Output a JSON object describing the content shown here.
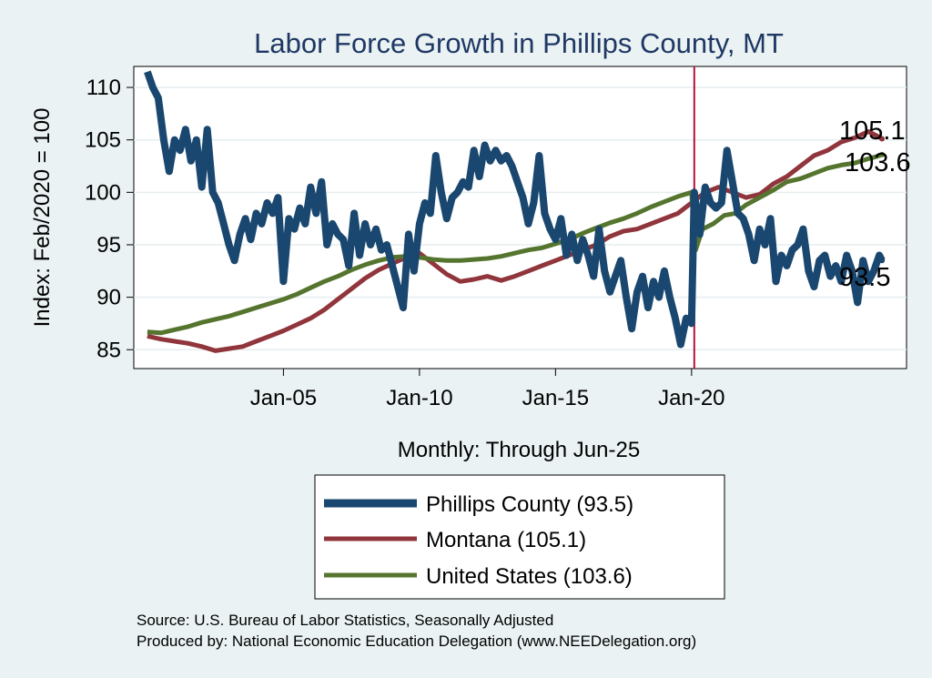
{
  "chart_data": {
    "type": "line",
    "title": "Labor Force Growth in Phillips  County, MT",
    "xlabel": "Monthly: Through Jun-25",
    "ylabel": "Index: Feb/2020 = 100",
    "ylim": [
      83.2,
      112
    ],
    "yticks": [
      85,
      90,
      95,
      100,
      105,
      110
    ],
    "xticks": [
      {
        "label": "Jan-05",
        "value": 2005.0
      },
      {
        "label": "Jan-10",
        "value": 2010.0
      },
      {
        "label": "Jan-15",
        "value": 2015.0
      },
      {
        "label": "Jan-20",
        "value": 2020.0
      }
    ],
    "xlim": [
      1999.5,
      2027.9
    ],
    "reference_line": {
      "x": 2020.1,
      "color": "#b5123c"
    },
    "grid": true,
    "series": [
      {
        "name": "Phillips  County",
        "legend": "Phillips  County (93.5)",
        "color": "#1a476f",
        "end_label": "93.5",
        "points": [
          [
            2000.0,
            111.5
          ],
          [
            2000.2,
            110.0
          ],
          [
            2000.4,
            109.0
          ],
          [
            2000.6,
            105.0
          ],
          [
            2000.8,
            102.0
          ],
          [
            2001.0,
            105.0
          ],
          [
            2001.2,
            104.0
          ],
          [
            2001.4,
            106.0
          ],
          [
            2001.6,
            103.0
          ],
          [
            2001.8,
            105.0
          ],
          [
            2002.0,
            100.5
          ],
          [
            2002.2,
            106.0
          ],
          [
            2002.4,
            100.0
          ],
          [
            2002.6,
            99.0
          ],
          [
            2002.8,
            97.0
          ],
          [
            2003.0,
            95.0
          ],
          [
            2003.2,
            93.5
          ],
          [
            2003.4,
            96.0
          ],
          [
            2003.6,
            97.5
          ],
          [
            2003.8,
            95.5
          ],
          [
            2004.0,
            98.0
          ],
          [
            2004.2,
            97.0
          ],
          [
            2004.4,
            99.0
          ],
          [
            2004.6,
            98.0
          ],
          [
            2004.8,
            99.5
          ],
          [
            2005.0,
            91.5
          ],
          [
            2005.2,
            97.5
          ],
          [
            2005.4,
            96.5
          ],
          [
            2005.6,
            98.5
          ],
          [
            2005.8,
            97.0
          ],
          [
            2006.0,
            100.5
          ],
          [
            2006.2,
            98.0
          ],
          [
            2006.4,
            101.0
          ],
          [
            2006.6,
            95.0
          ],
          [
            2006.8,
            97.0
          ],
          [
            2007.0,
            96.0
          ],
          [
            2007.2,
            95.5
          ],
          [
            2007.4,
            93.0
          ],
          [
            2007.6,
            98.0
          ],
          [
            2007.8,
            94.0
          ],
          [
            2008.0,
            97.0
          ],
          [
            2008.2,
            95.0
          ],
          [
            2008.4,
            96.5
          ],
          [
            2008.6,
            94.5
          ],
          [
            2008.8,
            95.0
          ],
          [
            2009.0,
            93.0
          ],
          [
            2009.2,
            91.0
          ],
          [
            2009.4,
            89.0
          ],
          [
            2009.6,
            96.0
          ],
          [
            2009.8,
            92.5
          ],
          [
            2010.0,
            97.0
          ],
          [
            2010.2,
            99.0
          ],
          [
            2010.4,
            98.0
          ],
          [
            2010.6,
            103.5
          ],
          [
            2010.8,
            100.0
          ],
          [
            2011.0,
            97.5
          ],
          [
            2011.2,
            99.5
          ],
          [
            2011.4,
            100.0
          ],
          [
            2011.6,
            101.0
          ],
          [
            2011.8,
            100.5
          ],
          [
            2012.0,
            104.0
          ],
          [
            2012.2,
            101.5
          ],
          [
            2012.4,
            104.5
          ],
          [
            2012.6,
            103.0
          ],
          [
            2012.8,
            104.0
          ],
          [
            2013.0,
            103.0
          ],
          [
            2013.2,
            103.5
          ],
          [
            2013.4,
            102.5
          ],
          [
            2013.6,
            101.0
          ],
          [
            2013.8,
            99.5
          ],
          [
            2014.0,
            97.0
          ],
          [
            2014.2,
            99.0
          ],
          [
            2014.4,
            103.5
          ],
          [
            2014.6,
            98.0
          ],
          [
            2014.8,
            96.5
          ],
          [
            2015.0,
            95.5
          ],
          [
            2015.2,
            97.5
          ],
          [
            2015.4,
            94.0
          ],
          [
            2015.6,
            96.0
          ],
          [
            2015.8,
            93.5
          ],
          [
            2016.0,
            95.5
          ],
          [
            2016.2,
            94.0
          ],
          [
            2016.4,
            92.0
          ],
          [
            2016.6,
            96.5
          ],
          [
            2016.8,
            92.5
          ],
          [
            2017.0,
            90.5
          ],
          [
            2017.2,
            92.0
          ],
          [
            2017.4,
            93.5
          ],
          [
            2017.6,
            90.0
          ],
          [
            2017.8,
            87.0
          ],
          [
            2018.0,
            90.5
          ],
          [
            2018.2,
            92.0
          ],
          [
            2018.4,
            89.0
          ],
          [
            2018.6,
            91.5
          ],
          [
            2018.8,
            90.0
          ],
          [
            2019.0,
            92.5
          ],
          [
            2019.2,
            90.0
          ],
          [
            2019.4,
            88.0
          ],
          [
            2019.6,
            85.5
          ],
          [
            2019.8,
            88.0
          ],
          [
            2020.0,
            87.5
          ],
          [
            2020.1,
            100.0
          ],
          [
            2020.3,
            96.0
          ],
          [
            2020.5,
            100.5
          ],
          [
            2020.7,
            99.0
          ],
          [
            2020.9,
            98.5
          ],
          [
            2021.1,
            99.0
          ],
          [
            2021.3,
            104.0
          ],
          [
            2021.5,
            101.0
          ],
          [
            2021.7,
            98.0
          ],
          [
            2021.9,
            97.5
          ],
          [
            2022.1,
            96.0
          ],
          [
            2022.3,
            93.5
          ],
          [
            2022.5,
            96.5
          ],
          [
            2022.7,
            95.0
          ],
          [
            2022.9,
            97.5
          ],
          [
            2023.1,
            91.5
          ],
          [
            2023.3,
            94.0
          ],
          [
            2023.5,
            93.0
          ],
          [
            2023.7,
            94.5
          ],
          [
            2023.9,
            95.0
          ],
          [
            2024.1,
            96.5
          ],
          [
            2024.3,
            92.5
          ],
          [
            2024.5,
            91.0
          ],
          [
            2024.7,
            93.5
          ],
          [
            2024.9,
            94.0
          ],
          [
            2025.1,
            92.0
          ],
          [
            2025.3,
            93.0
          ],
          [
            2025.5,
            91.5
          ],
          [
            2025.7,
            94.0
          ],
          [
            2025.9,
            92.5
          ],
          [
            2026.1,
            89.5
          ],
          [
            2026.3,
            93.5
          ],
          [
            2026.5,
            91.5
          ],
          [
            2026.7,
            92.5
          ],
          [
            2026.9,
            94.0
          ],
          [
            2027.0,
            93.5
          ]
        ]
      },
      {
        "name": "Montana",
        "legend": "Montana (105.1)",
        "color": "#90353b",
        "end_label": "105.1",
        "points": [
          [
            2000.0,
            86.3
          ],
          [
            2000.5,
            86.0
          ],
          [
            2001.0,
            85.8
          ],
          [
            2001.5,
            85.6
          ],
          [
            2002.0,
            85.3
          ],
          [
            2002.5,
            84.9
          ],
          [
            2003.0,
            85.1
          ],
          [
            2003.5,
            85.3
          ],
          [
            2004.0,
            85.8
          ],
          [
            2004.5,
            86.3
          ],
          [
            2005.0,
            86.8
          ],
          [
            2005.5,
            87.4
          ],
          [
            2006.0,
            88.0
          ],
          [
            2006.5,
            88.8
          ],
          [
            2007.0,
            89.8
          ],
          [
            2007.5,
            90.8
          ],
          [
            2008.0,
            91.8
          ],
          [
            2008.5,
            92.6
          ],
          [
            2009.0,
            93.2
          ],
          [
            2009.5,
            93.8
          ],
          [
            2010.0,
            94.2
          ],
          [
            2010.5,
            93.2
          ],
          [
            2011.0,
            92.2
          ],
          [
            2011.5,
            91.5
          ],
          [
            2012.0,
            91.7
          ],
          [
            2012.5,
            92.0
          ],
          [
            2013.0,
            91.6
          ],
          [
            2013.5,
            92.0
          ],
          [
            2014.0,
            92.5
          ],
          [
            2014.5,
            93.0
          ],
          [
            2015.0,
            93.5
          ],
          [
            2015.5,
            94.0
          ],
          [
            2016.0,
            94.5
          ],
          [
            2016.5,
            95.0
          ],
          [
            2017.0,
            95.8
          ],
          [
            2017.5,
            96.3
          ],
          [
            2018.0,
            96.5
          ],
          [
            2018.5,
            97.0
          ],
          [
            2019.0,
            97.5
          ],
          [
            2019.5,
            98.0
          ],
          [
            2020.0,
            99.0
          ],
          [
            2020.5,
            100.0
          ],
          [
            2021.0,
            100.5
          ],
          [
            2021.5,
            100.0
          ],
          [
            2022.0,
            99.5
          ],
          [
            2022.5,
            99.8
          ],
          [
            2023.0,
            100.8
          ],
          [
            2023.5,
            101.5
          ],
          [
            2024.0,
            102.5
          ],
          [
            2024.5,
            103.5
          ],
          [
            2025.0,
            104.0
          ],
          [
            2025.5,
            104.8
          ],
          [
            2026.0,
            105.2
          ],
          [
            2026.5,
            105.8
          ],
          [
            2026.8,
            105.4
          ],
          [
            2027.0,
            105.1
          ]
        ]
      },
      {
        "name": "United States",
        "legend": "United States (103.6)",
        "color": "#55752f",
        "end_label": "103.6",
        "points": [
          [
            2000.0,
            86.7
          ],
          [
            2000.5,
            86.6
          ],
          [
            2001.0,
            86.9
          ],
          [
            2001.5,
            87.2
          ],
          [
            2002.0,
            87.6
          ],
          [
            2002.5,
            87.9
          ],
          [
            2003.0,
            88.2
          ],
          [
            2003.5,
            88.6
          ],
          [
            2004.0,
            89.0
          ],
          [
            2004.5,
            89.4
          ],
          [
            2005.0,
            89.8
          ],
          [
            2005.5,
            90.3
          ],
          [
            2006.0,
            90.9
          ],
          [
            2006.5,
            91.5
          ],
          [
            2007.0,
            92.0
          ],
          [
            2007.5,
            92.6
          ],
          [
            2008.0,
            93.1
          ],
          [
            2008.5,
            93.5
          ],
          [
            2009.0,
            93.8
          ],
          [
            2009.5,
            93.9
          ],
          [
            2010.0,
            93.8
          ],
          [
            2010.5,
            93.6
          ],
          [
            2011.0,
            93.5
          ],
          [
            2011.5,
            93.5
          ],
          [
            2012.0,
            93.6
          ],
          [
            2012.5,
            93.7
          ],
          [
            2013.0,
            93.9
          ],
          [
            2013.5,
            94.2
          ],
          [
            2014.0,
            94.5
          ],
          [
            2014.5,
            94.7
          ],
          [
            2015.0,
            95.1
          ],
          [
            2015.5,
            95.5
          ],
          [
            2016.0,
            96.1
          ],
          [
            2016.5,
            96.6
          ],
          [
            2017.0,
            97.1
          ],
          [
            2017.5,
            97.5
          ],
          [
            2018.0,
            98.0
          ],
          [
            2018.5,
            98.6
          ],
          [
            2019.0,
            99.1
          ],
          [
            2019.5,
            99.6
          ],
          [
            2020.0,
            100.0
          ],
          [
            2020.15,
            94.5
          ],
          [
            2020.4,
            96.5
          ],
          [
            2020.8,
            97.0
          ],
          [
            2021.2,
            97.8
          ],
          [
            2021.6,
            98.0
          ],
          [
            2022.0,
            98.8
          ],
          [
            2022.5,
            99.5
          ],
          [
            2023.0,
            100.2
          ],
          [
            2023.5,
            101.0
          ],
          [
            2024.0,
            101.3
          ],
          [
            2024.5,
            101.8
          ],
          [
            2025.0,
            102.3
          ],
          [
            2025.5,
            102.6
          ],
          [
            2026.0,
            102.8
          ],
          [
            2026.5,
            103.2
          ],
          [
            2026.8,
            103.4
          ],
          [
            2027.0,
            103.6
          ]
        ]
      }
    ]
  },
  "notes": {
    "source": "Source: U.S. Bureau of Labor Statistics, Seasonally Adjusted",
    "produced_by": "Produced by: National Economic Education Delegation (www.NEEDelegation.org)"
  }
}
